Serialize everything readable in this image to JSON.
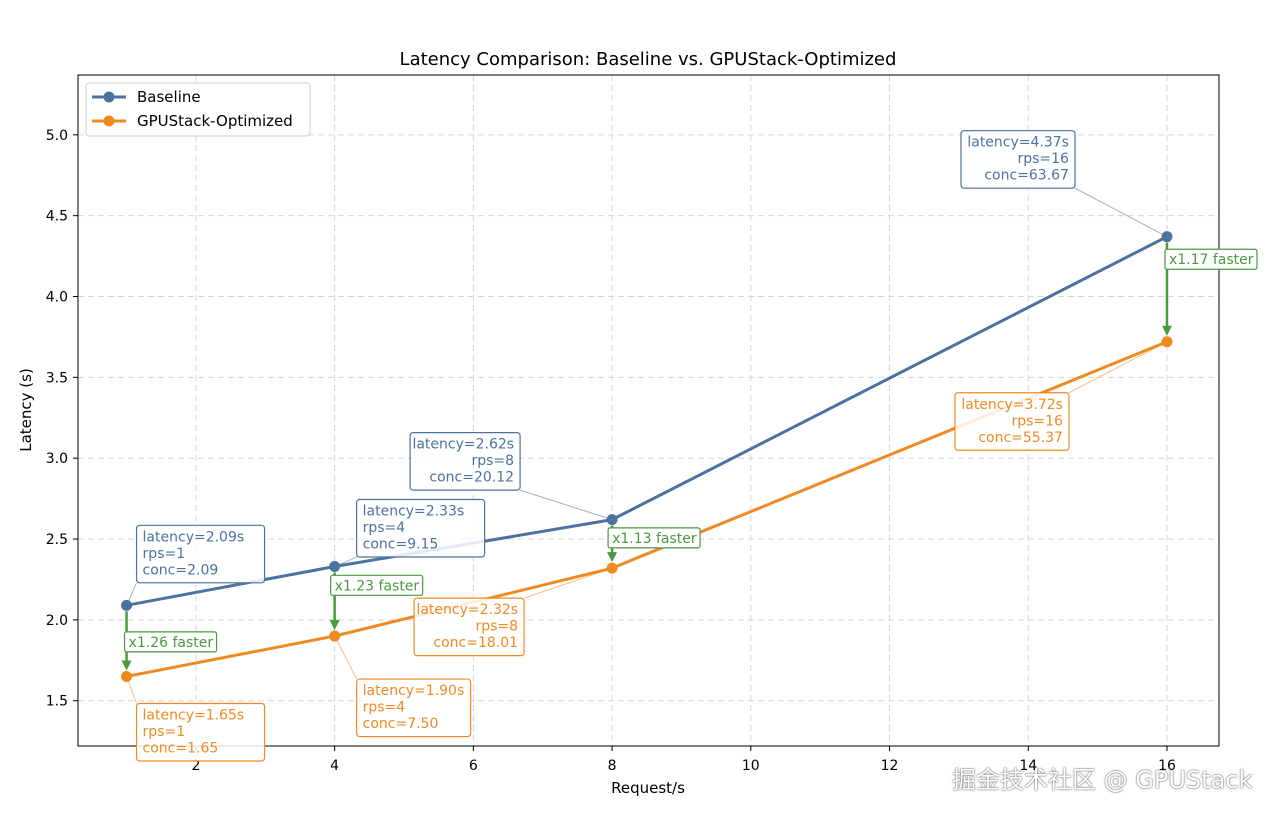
{
  "chart_data": {
    "type": "line",
    "title": "Latency Comparison: Baseline vs. GPUStack-Optimized",
    "xlabel": "Request/s",
    "ylabel": "Latency (s)",
    "xlim": [
      0.3,
      16.75
    ],
    "ylim": [
      1.22,
      5.37
    ],
    "xticks": [
      2,
      4,
      6,
      8,
      10,
      12,
      14,
      16
    ],
    "yticks": [
      1.5,
      2.0,
      2.5,
      3.0,
      3.5,
      4.0,
      4.5,
      5.0
    ],
    "ytick_labels": [
      "1.5",
      "2.0",
      "2.5",
      "3.0",
      "3.5",
      "4.0",
      "4.5",
      "5.0"
    ],
    "grid": true,
    "legend_position": "top-left",
    "x": [
      1,
      4,
      8,
      16
    ],
    "series": [
      {
        "name": "Baseline",
        "color": "#4c72a0",
        "values": [
          2.09,
          2.33,
          2.62,
          4.37
        ],
        "annotations": [
          [
            "latency=2.09s",
            "rps=1",
            "conc=2.09"
          ],
          [
            "latency=2.33s",
            "rps=4",
            "conc=9.15"
          ],
          [
            "latency=2.62s",
            "rps=8",
            "conc=20.12"
          ],
          [
            "latency=4.37s",
            "rps=16",
            "conc=63.67"
          ]
        ]
      },
      {
        "name": "GPUStack-Optimized",
        "color": "#ef8a23",
        "values": [
          1.65,
          1.9,
          2.32,
          3.72
        ],
        "annotations": [
          [
            "latency=1.65s",
            "rps=1",
            "conc=1.65"
          ],
          [
            "latency=1.90s",
            "rps=4",
            "conc=7.50"
          ],
          [
            "latency=2.32s",
            "rps=8",
            "conc=18.01"
          ],
          [
            "latency=3.72s",
            "rps=16",
            "conc=55.37"
          ]
        ]
      }
    ],
    "speedups": [
      "x1.26 faster",
      "x1.23 faster",
      "x1.13 faster",
      "x1.17 faster"
    ],
    "speedup_color": "#4a9a3f"
  },
  "watermark": "掘金技术社区 @ GPUStack"
}
